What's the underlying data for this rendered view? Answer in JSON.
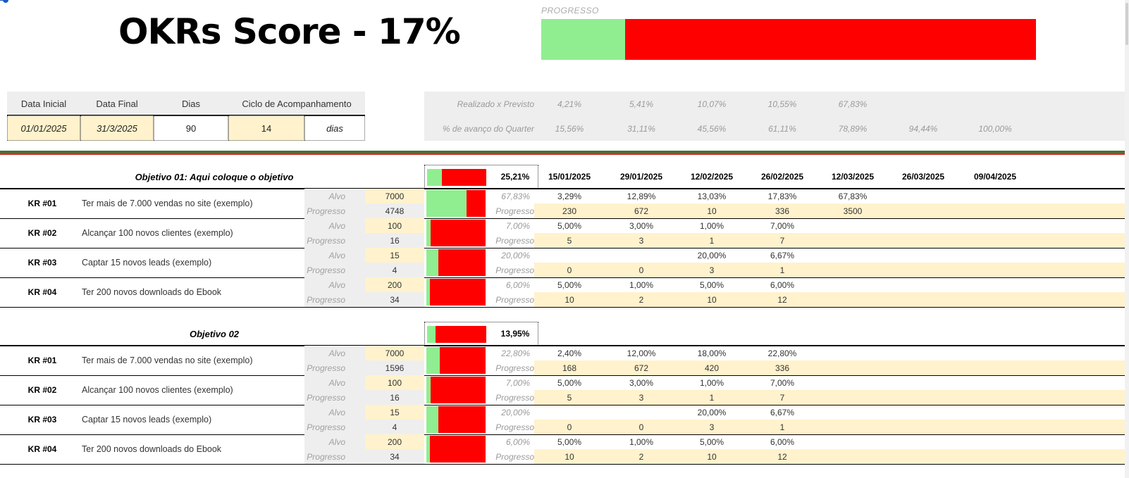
{
  "title": "OKRs Score - 17%",
  "progress": {
    "label": "PROGRESSO",
    "fraction": 0.17
  },
  "schedule": {
    "headers": [
      "Data Inicial",
      "Data Final",
      "Dias",
      "Ciclo de Acompanhamento"
    ],
    "values": [
      "01/01/2025",
      "31/3/2025",
      "90",
      "14",
      "dias"
    ]
  },
  "summary": {
    "row1_label": "Realizado x Previsto",
    "row1_values": [
      "4,21%",
      "5,41%",
      "10,07%",
      "10,55%",
      "67,83%",
      "",
      ""
    ],
    "row2_label": "% de avanço do Quarter",
    "row2_values": [
      "15,56%",
      "31,11%",
      "45,56%",
      "61,11%",
      "78,89%",
      "94,44%",
      "100,00%"
    ]
  },
  "dates": [
    "15/01/2025",
    "29/01/2025",
    "12/02/2025",
    "26/02/2025",
    "12/03/2025",
    "26/03/2025",
    "09/04/2025"
  ],
  "labels": {
    "alvo": "Alvo",
    "progresso": "Progresso"
  },
  "colors": {
    "done": "#90ee90",
    "remaining": "#ff0000",
    "highlight": "#fff2cc",
    "panel": "#eeeeee"
  },
  "objectives": [
    {
      "title": "Objetivo 01: Aqui coloque o objetivo",
      "score": "25,21%",
      "score_fraction": 0.2521,
      "krs": [
        {
          "id": "KR #01",
          "desc": "Ter mais de 7.000 vendas no site (exemplo)",
          "alvo": "7000",
          "progresso": "4748",
          "pct": "67,83%",
          "fraction": 0.6783,
          "pcts": [
            "3,29%",
            "12,89%",
            "13,03%",
            "17,83%",
            "67,83%",
            "",
            ""
          ],
          "vals": [
            "230",
            "672",
            "10",
            "336",
            "3500",
            "",
            ""
          ]
        },
        {
          "id": "KR #02",
          "desc": "Alcançar 100 novos clientes (exemplo)",
          "alvo": "100",
          "progresso": "16",
          "pct": "7,00%",
          "fraction": 0.07,
          "pcts": [
            "5,00%",
            "3,00%",
            "1,00%",
            "7,00%",
            "",
            "",
            ""
          ],
          "vals": [
            "5",
            "3",
            "1",
            "7",
            "",
            "",
            ""
          ]
        },
        {
          "id": "KR #03",
          "desc": "Captar 15 novos leads (exemplo)",
          "alvo": "15",
          "progresso": "4",
          "pct": "20,00%",
          "fraction": 0.2,
          "pcts": [
            "",
            "",
            "20,00%",
            "6,67%",
            "",
            "",
            ""
          ],
          "vals": [
            "0",
            "0",
            "3",
            "1",
            "",
            "",
            ""
          ]
        },
        {
          "id": "KR #04",
          "desc": "Ter 200 novos downloads do Ebook",
          "alvo": "200",
          "progresso": "34",
          "pct": "6,00%",
          "fraction": 0.06,
          "pcts": [
            "5,00%",
            "1,00%",
            "5,00%",
            "6,00%",
            "",
            "",
            ""
          ],
          "vals": [
            "10",
            "2",
            "10",
            "12",
            "",
            "",
            ""
          ]
        }
      ]
    },
    {
      "title": "Objetivo 02",
      "score": "13,95%",
      "score_fraction": 0.1395,
      "krs": [
        {
          "id": "KR #01",
          "desc": "Ter mais de 7.000 vendas no site (exemplo)",
          "alvo": "7000",
          "progresso": "1596",
          "pct": "22,80%",
          "fraction": 0.228,
          "pcts": [
            "2,40%",
            "12,00%",
            "18,00%",
            "22,80%",
            "",
            "",
            ""
          ],
          "vals": [
            "168",
            "672",
            "420",
            "336",
            "",
            "",
            ""
          ]
        },
        {
          "id": "KR #02",
          "desc": "Alcançar 100 novos clientes (exemplo)",
          "alvo": "100",
          "progresso": "16",
          "pct": "7,00%",
          "fraction": 0.07,
          "pcts": [
            "5,00%",
            "3,00%",
            "1,00%",
            "7,00%",
            "",
            "",
            ""
          ],
          "vals": [
            "5",
            "3",
            "1",
            "7",
            "",
            "",
            ""
          ]
        },
        {
          "id": "KR #03",
          "desc": "Captar 15 novos leads (exemplo)",
          "alvo": "15",
          "progresso": "4",
          "pct": "20,00%",
          "fraction": 0.2,
          "pcts": [
            "",
            "",
            "20,00%",
            "6,67%",
            "",
            "",
            ""
          ],
          "vals": [
            "0",
            "0",
            "3",
            "1",
            "",
            "",
            ""
          ]
        },
        {
          "id": "KR #04",
          "desc": "Ter 200 novos downloads do Ebook",
          "alvo": "200",
          "progresso": "34",
          "pct": "6,00%",
          "fraction": 0.06,
          "pcts": [
            "5,00%",
            "1,00%",
            "5,00%",
            "6,00%",
            "",
            "",
            ""
          ],
          "vals": [
            "10",
            "2",
            "10",
            "12",
            "",
            "",
            ""
          ]
        }
      ]
    }
  ]
}
